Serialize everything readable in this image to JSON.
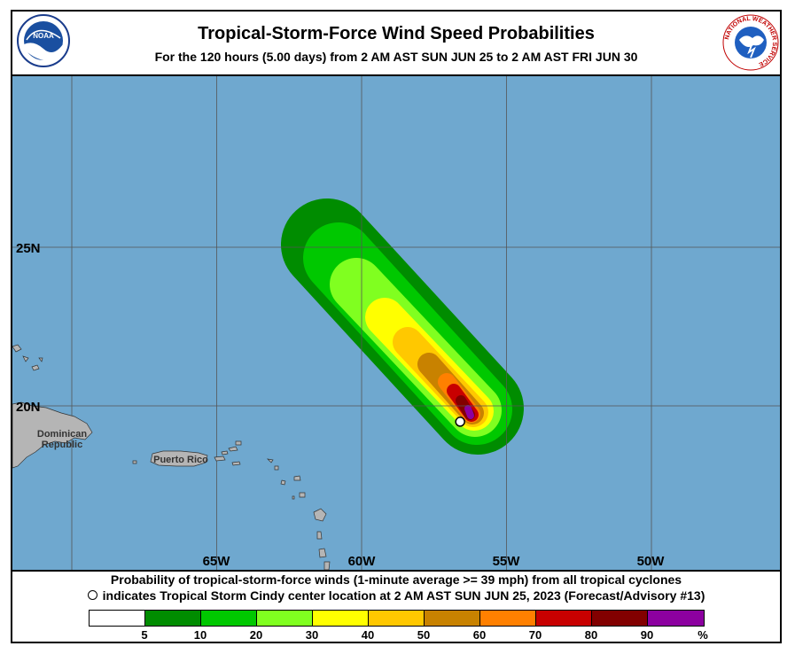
{
  "header": {
    "title": "Tropical-Storm-Force Wind Speed Probabilities",
    "subtitle": "For the 120 hours (5.00 days) from 2 AM AST SUN JUN 25 to 2 AM AST FRI JUN 30",
    "left_logo_label": "NOAA",
    "right_logo_label": "NATIONAL WEATHER SERVICE"
  },
  "map": {
    "ocean_color": "#6fa8cf",
    "land_color": "#b5b5b5",
    "lat_labels": [
      "25N",
      "20N"
    ],
    "lon_labels": [
      "65W",
      "60W",
      "55W",
      "50W"
    ],
    "place_labels": [
      "Dominican",
      "Republic",
      "Puerto Rico"
    ],
    "storm_center": {
      "lat": 19.5,
      "lon": -56.6
    }
  },
  "footer": {
    "line1": "Probability of tropical-storm-force winds (1-minute average >= 39 mph) from all tropical cyclones",
    "line2": "indicates Tropical Storm Cindy center location at 2 AM AST SUN JUN 25, 2023 (Forecast/Advisory #13)"
  },
  "legend": {
    "colors": [
      "#ffffff",
      "#008c00",
      "#00c800",
      "#80ff20",
      "#ffff00",
      "#ffc800",
      "#c88200",
      "#ff8000",
      "#c80000",
      "#820000",
      "#8c00a0"
    ],
    "tick_labels": [
      "5",
      "10",
      "20",
      "30",
      "40",
      "50",
      "60",
      "70",
      "80",
      "90",
      "%"
    ]
  }
}
